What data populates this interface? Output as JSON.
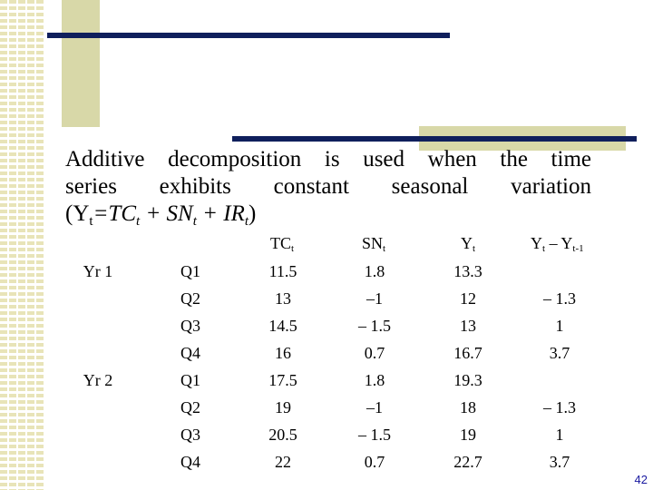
{
  "intro": {
    "line1": "Additive decomposition is used when the time",
    "line2": "series exhibits constant seasonal variation",
    "formula": {
      "open": "(Y",
      "sub_t": "t",
      "eq_tc": "=TC",
      "plus_sn": " + SN",
      "plus_ir": " + IR",
      "close": ")"
    }
  },
  "table": {
    "headers": {
      "tc": "TC",
      "tc_sub": "t",
      "sn": "SN",
      "sn_sub": "t",
      "y": "Y",
      "y_sub": "t",
      "diff": "Y",
      "diff_sub1": "t",
      "diff_mid": " – Y",
      "diff_sub2": "t-1"
    },
    "rows": [
      {
        "year": "Yr 1",
        "quarter": "Q1",
        "tc": "11.5",
        "sn": "1.8",
        "y": "13.3",
        "diff": ""
      },
      {
        "year": "",
        "quarter": "Q2",
        "tc": "13",
        "sn": "–1",
        "y": "12",
        "diff": "– 1.3"
      },
      {
        "year": "",
        "quarter": "Q3",
        "tc": "14.5",
        "sn": "– 1.5",
        "y": "13",
        "diff": "1"
      },
      {
        "year": "",
        "quarter": "Q4",
        "tc": "16",
        "sn": "0.7",
        "y": "16.7",
        "diff": "3.7"
      },
      {
        "year": "Yr 2",
        "quarter": "Q1",
        "tc": "17.5",
        "sn": "1.8",
        "y": "19.3",
        "diff": ""
      },
      {
        "year": "",
        "quarter": "Q2",
        "tc": "19",
        "sn": "–1",
        "y": "18",
        "diff": "– 1.3"
      },
      {
        "year": "",
        "quarter": "Q3",
        "tc": "20.5",
        "sn": "– 1.5",
        "y": "19",
        "diff": "1"
      },
      {
        "year": "",
        "quarter": "Q4",
        "tc": "22",
        "sn": "0.7",
        "y": "22.7",
        "diff": "3.7"
      }
    ]
  },
  "page_number": "42",
  "colors": {
    "navy": "#0f1f5c",
    "olive": "#d8d8a8",
    "page_number": "#1a1aa0"
  }
}
